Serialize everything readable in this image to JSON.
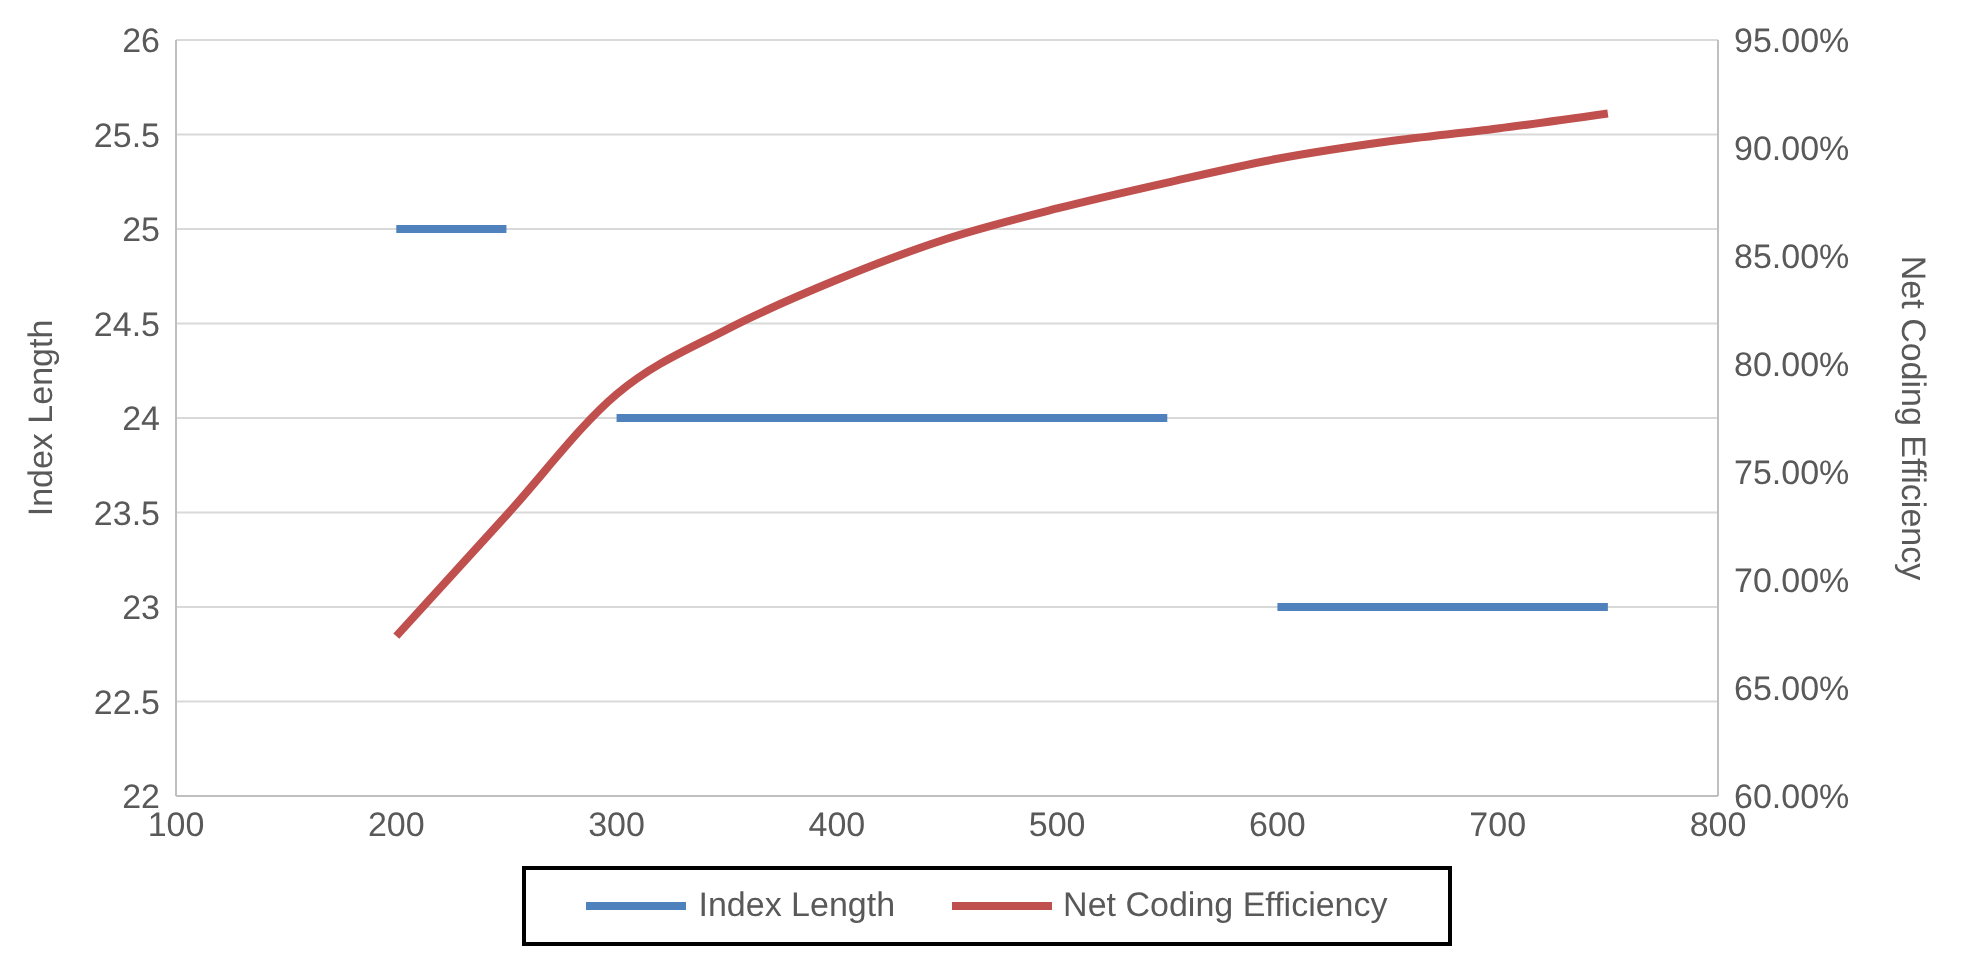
{
  "chart_data": {
    "type": "line",
    "xlim": [
      100,
      800
    ],
    "xticks": [
      100,
      200,
      300,
      400,
      500,
      600,
      700,
      800
    ],
    "ylabel": "Index Length",
    "y2label": "Net Coding Efficiency",
    "ylim": [
      22,
      26
    ],
    "yticks": [
      22,
      22.5,
      23,
      23.5,
      24,
      24.5,
      25,
      25.5,
      26
    ],
    "y2lim": [
      60,
      95
    ],
    "y2ticks": [
      {
        "value": 60,
        "label": "60.00%"
      },
      {
        "value": 65,
        "label": "65.00%"
      },
      {
        "value": 70,
        "label": "70.00%"
      },
      {
        "value": 75,
        "label": "75.00%"
      },
      {
        "value": 80,
        "label": "80.00%"
      },
      {
        "value": 85,
        "label": "85.00%"
      },
      {
        "value": 90,
        "label": "90.00%"
      },
      {
        "value": 95,
        "label": "95.00%"
      }
    ],
    "grid": "y",
    "legend": "bottom",
    "marker": "none",
    "line_style": "solid",
    "series": [
      {
        "name": "Index Length",
        "color": "#4f81bd",
        "x": [
          200,
          250,
          275,
          300,
          550,
          575,
          600,
          750
        ],
        "values": [
          25,
          25,
          null,
          24,
          24,
          null,
          23,
          23
        ]
      },
      {
        "name": "Net Coding Efficiency",
        "color": "#c0504d",
        "axis": "y2",
        "x": [
          200,
          250,
          300,
          350,
          400,
          450,
          500,
          550,
          600,
          650,
          700,
          750
        ],
        "values": [
          67.4,
          73.0,
          78.6,
          81.6,
          83.9,
          85.8,
          87.2,
          88.4,
          89.5,
          90.3,
          90.9,
          91.6
        ]
      }
    ]
  }
}
